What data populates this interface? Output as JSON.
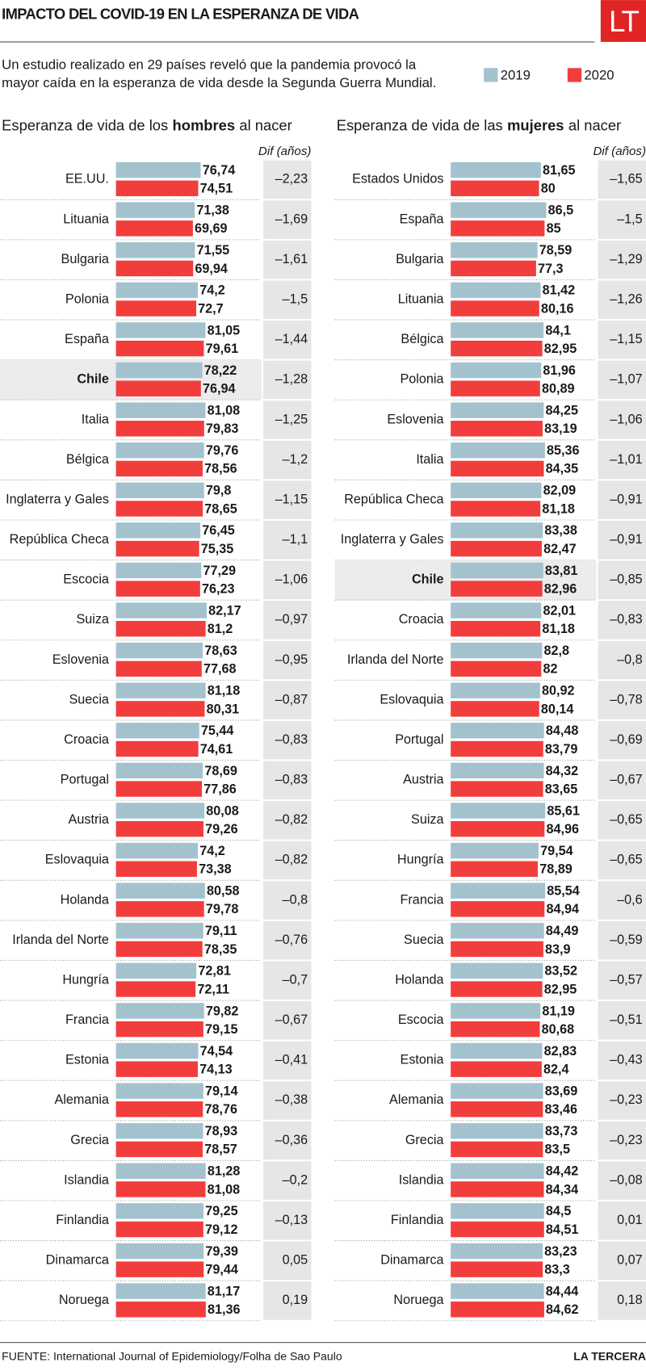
{
  "header": {
    "title": "IMPACTO DEL COVID-19 EN LA ESPERANZA DE VIDA",
    "logo": "LT",
    "subtitle": [
      "Un estudio realizado en 29 países reveló que la pandemia provocó la",
      "mayor caída en la esperanza de vida desde la Segunda Guerra Mundial."
    ]
  },
  "footer": {
    "source": "FUENTE: International Journal of Epidemiology/Folha de Sao Paulo",
    "brand": "LA TERCERA"
  },
  "chart_data": [
    {
      "type": "bar",
      "title": [
        "Esperanza de vida de los",
        "hombres",
        "al nacer"
      ],
      "xlim": [
        0,
        90
      ],
      "highlight": 5,
      "categories": [
        "EE.UU.",
        "Lituania",
        "Bulgaria",
        "Polonia",
        "España",
        "Chile",
        "Italia",
        "Bélgica",
        "Inglaterra y Gales",
        "República Checa",
        "Escocia",
        "Suiza",
        "Eslovenia",
        "Suecia",
        "Croacia",
        "Portugal",
        "Austria",
        "Eslovaquia",
        "Holanda",
        "Irlanda del Norte",
        "Hungría",
        "Francia",
        "Estonia",
        "Alemania",
        "Grecia",
        "Islandia",
        "Finlandia",
        "Dinamarca",
        "Noruega"
      ],
      "series": [
        {
          "name": "2019",
          "color": "#a3c2cd",
          "values": [
            76.74,
            71.38,
            71.55,
            74.2,
            81.05,
            78.22,
            81.08,
            79.76,
            79.8,
            76.45,
            77.29,
            82.17,
            78.63,
            81.18,
            75.44,
            78.69,
            80.08,
            74.2,
            80.58,
            79.11,
            72.81,
            79.82,
            74.54,
            79.14,
            78.93,
            81.28,
            79.25,
            79.39,
            81.17
          ],
          "value_labels": [
            "76,74",
            "71,38",
            "71,55",
            "74,2",
            "81,05",
            "78,22",
            "81,08",
            "79,76",
            "79,8",
            "76,45",
            "77,29",
            "82,17",
            "78,63",
            "81,18",
            "75,44",
            "78,69",
            "80,08",
            "74,2",
            "80,58",
            "79,11",
            "72,81",
            "79,82",
            "74,54",
            "79,14",
            "78,93",
            "81,28",
            "79,25",
            "79,39",
            "81,17"
          ]
        },
        {
          "name": "2020",
          "color": "#f23d3d",
          "values": [
            74.51,
            69.69,
            69.94,
            72.7,
            79.61,
            76.94,
            79.83,
            78.56,
            78.65,
            75.35,
            76.23,
            81.2,
            77.68,
            80.31,
            74.61,
            77.86,
            79.26,
            73.38,
            79.78,
            78.35,
            72.11,
            79.15,
            74.13,
            78.76,
            78.57,
            81.08,
            79.12,
            79.44,
            81.36
          ],
          "value_labels": [
            "74,51",
            "69,69",
            "69,94",
            "72,7",
            "79,61",
            "76,94",
            "79,83",
            "78,56",
            "78,65",
            "75,35",
            "76,23",
            "81,2",
            "77,68",
            "80,31",
            "74,61",
            "77,86",
            "79,26",
            "73,38",
            "79,78",
            "78,35",
            "72,11",
            "79,15",
            "74,13",
            "78,76",
            "78,57",
            "81,08",
            "79,12",
            "79,44",
            "81,36"
          ]
        }
      ],
      "diff": {
        "name": "Dif (años)",
        "values": [
          -2.23,
          -1.69,
          -1.61,
          -1.5,
          -1.44,
          -1.28,
          -1.25,
          -1.2,
          -1.15,
          -1.1,
          -1.06,
          -0.97,
          -0.95,
          -0.87,
          -0.83,
          -0.83,
          -0.82,
          -0.82,
          -0.8,
          -0.76,
          -0.7,
          -0.67,
          -0.41,
          -0.38,
          -0.36,
          -0.2,
          -0.13,
          0.05,
          0.19
        ],
        "value_labels": [
          "–2,23",
          "–1,69",
          "–1,61",
          "–1,5",
          "–1,44",
          "–1,28",
          "–1,25",
          "–1,2",
          "–1,15",
          "–1,1",
          "–1,06",
          "–0,97",
          "–0,95",
          "–0,87",
          "–0,83",
          "–0,83",
          "–0,82",
          "–0,82",
          "–0,8",
          "–0,76",
          "–0,7",
          "–0,67",
          "–0,41",
          "–0,38",
          "–0,36",
          "–0,2",
          "–0,13",
          "0,05",
          "0,19"
        ]
      }
    },
    {
      "type": "bar",
      "title": [
        "Esperanza de vida de las",
        "mujeres",
        "al nacer"
      ],
      "xlim": [
        0,
        90
      ],
      "highlight": 10,
      "categories": [
        "Estados Unidos",
        "España",
        "Bulgaria",
        "Lituania",
        "Bélgica",
        "Polonia",
        "Eslovenia",
        "Italia",
        "República Checa",
        "Inglaterra y Gales",
        "Chile",
        "Croacia",
        "Irlanda del Norte",
        "Eslovaquia",
        "Portugal",
        "Austria",
        "Suiza",
        "Hungría",
        "Francia",
        "Suecia",
        "Holanda",
        "Escocia",
        "Estonia",
        "Alemania",
        "Grecia",
        "Islandia",
        "Finlandia",
        "Dinamarca",
        "Noruega"
      ],
      "series": [
        {
          "name": "2019",
          "color": "#a3c2cd",
          "values": [
            81.65,
            86.5,
            78.59,
            81.42,
            84.1,
            81.96,
            84.25,
            85.36,
            82.09,
            83.38,
            83.81,
            82.01,
            82.8,
            80.92,
            84.48,
            84.32,
            85.61,
            79.54,
            85.54,
            84.49,
            83.52,
            81.19,
            82.83,
            83.69,
            83.73,
            84.42,
            84.5,
            83.23,
            84.44
          ],
          "value_labels": [
            "81,65",
            "86,5",
            "78,59",
            "81,42",
            "84,1",
            "81,96",
            "84,25",
            "85,36",
            "82,09",
            "83,38",
            "83,81",
            "82,01",
            "82,8",
            "80,92",
            "84,48",
            "84,32",
            "85,61",
            "79,54",
            "85,54",
            "84,49",
            "83,52",
            "81,19",
            "82,83",
            "83,69",
            "83,73",
            "84,42",
            "84,5",
            "83,23",
            "84,44"
          ]
        },
        {
          "name": "2020",
          "color": "#f23d3d",
          "values": [
            80,
            85,
            77.3,
            80.16,
            82.95,
            80.89,
            83.19,
            84.35,
            81.18,
            82.47,
            82.96,
            81.18,
            82,
            80.14,
            83.79,
            83.65,
            84.96,
            78.89,
            84.94,
            83.9,
            82.95,
            80.68,
            82.4,
            83.46,
            83.5,
            84.34,
            84.51,
            83.3,
            84.62
          ],
          "value_labels": [
            "80",
            "85",
            "77,3",
            "80,16",
            "82,95",
            "80,89",
            "83,19",
            "84,35",
            "81,18",
            "82,47",
            "82,96",
            "81,18",
            "82",
            "80,14",
            "83,79",
            "83,65",
            "84,96",
            "78,89",
            "84,94",
            "83,9",
            "82,95",
            "80,68",
            "82,4",
            "83,46",
            "83,5",
            "84,34",
            "84,51",
            "83,3",
            "84,62"
          ]
        }
      ],
      "diff": {
        "name": "Dif (años)",
        "values": [
          -1.65,
          -1.5,
          -1.29,
          -1.26,
          -1.15,
          -1.07,
          -1.06,
          -1.01,
          -0.91,
          -0.91,
          -0.85,
          -0.83,
          -0.8,
          -0.78,
          -0.69,
          -0.67,
          -0.65,
          -0.65,
          -0.6,
          -0.59,
          -0.57,
          -0.51,
          -0.43,
          -0.23,
          -0.23,
          -0.08,
          0.01,
          0.07,
          0.18
        ],
        "value_labels": [
          "–1,65",
          "–1,5",
          "–1,29",
          "–1,26",
          "–1,15",
          "–1,07",
          "–1,06",
          "–1,01",
          "–0,91",
          "–0,91",
          "–0,85",
          "–0,83",
          "–0,8",
          "–0,78",
          "–0,69",
          "–0,67",
          "–0,65",
          "–0,65",
          "–0,6",
          "–0,59",
          "–0,57",
          "–0,51",
          "–0,43",
          "–0,23",
          "–0,23",
          "–0,08",
          "0,01",
          "0,07",
          "0,18"
        ]
      }
    }
  ]
}
